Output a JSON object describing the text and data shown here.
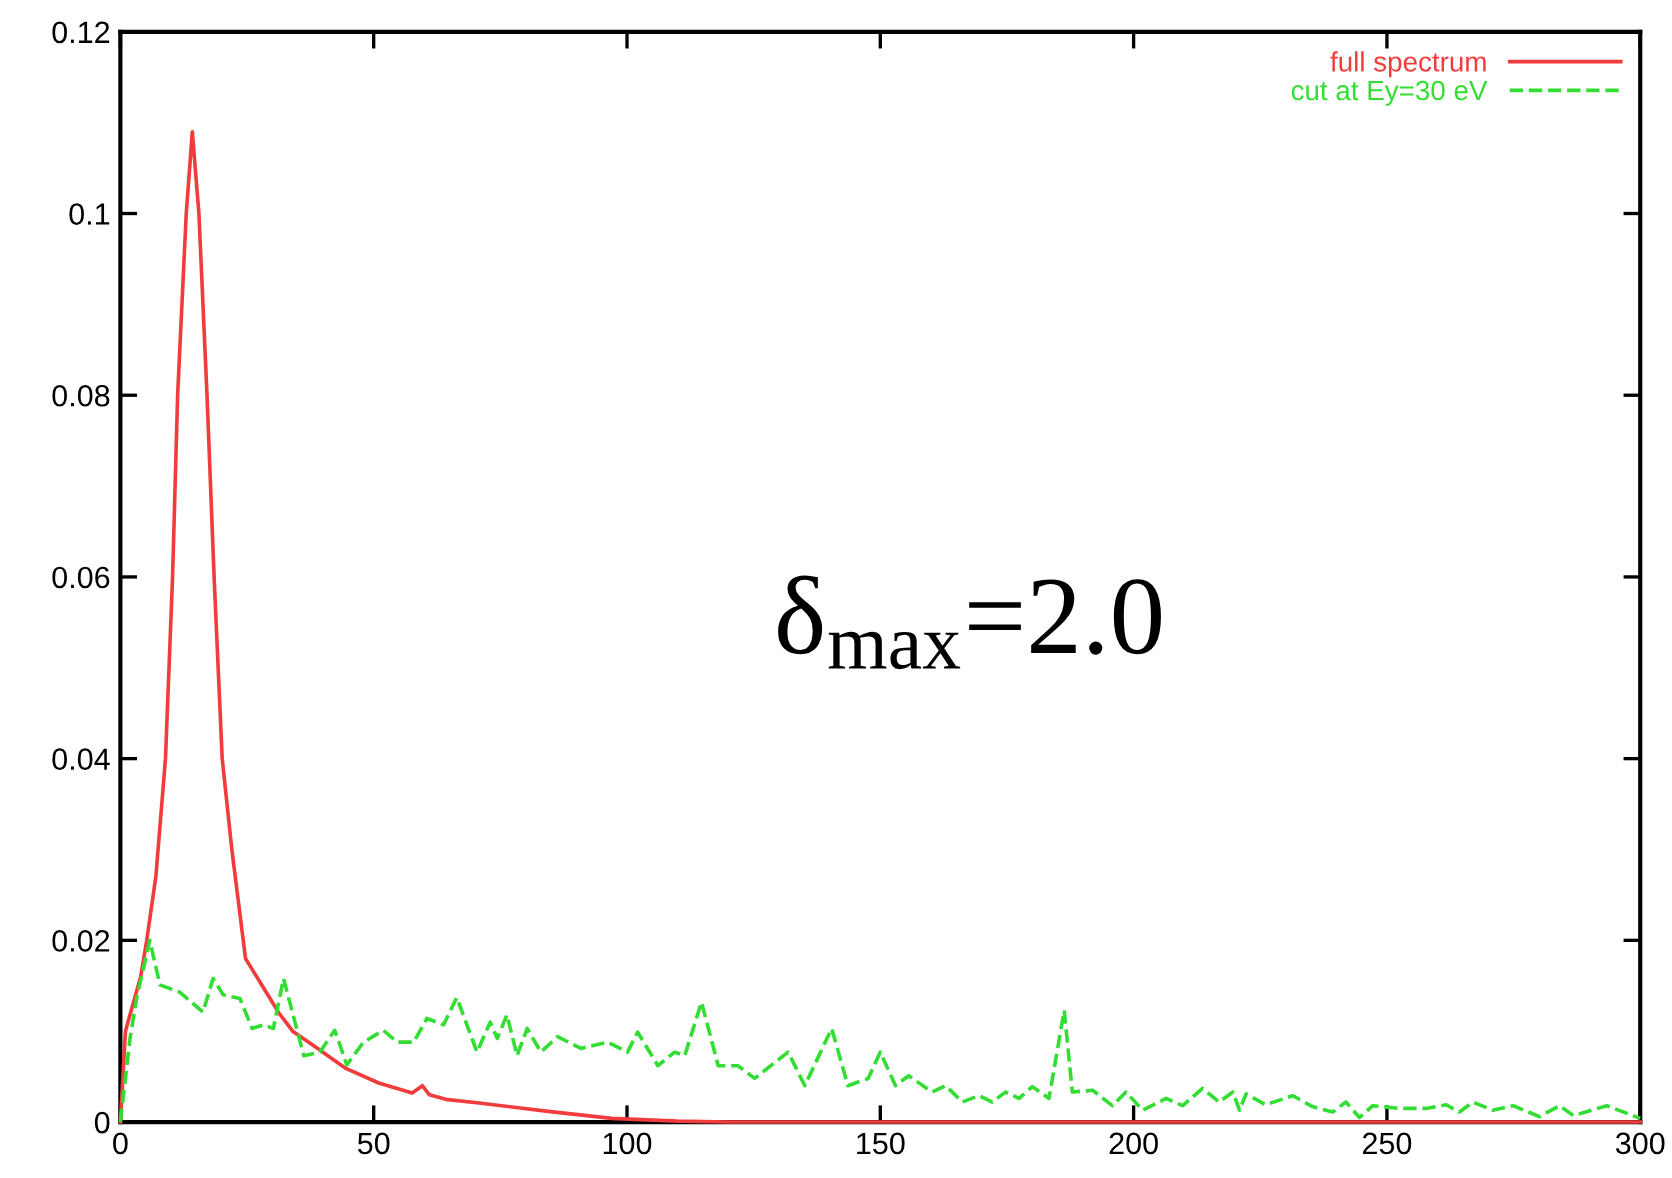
{
  "chart_data": {
    "type": "line",
    "xlim": [
      0,
      300
    ],
    "xticks": [
      0,
      50,
      100,
      150,
      200,
      250,
      300
    ],
    "ylim": [
      0,
      0.12
    ],
    "yticks": [
      0,
      0.02,
      0.04,
      0.06,
      0.08,
      0.1,
      0.12
    ],
    "grid": false,
    "legend": "top right",
    "marker": "none",
    "annotations": [
      "δ$_{max}$=2.0"
    ],
    "series": [
      {
        "name": "full spectrum",
        "color": "#f03c3c",
        "line_style": "solid",
        "x": [
          0,
          1,
          2,
          4,
          5.2,
          7,
          8.9,
          10.3,
          11.3,
          13,
          14.2,
          15.5,
          17.1,
          18.5,
          20.1,
          22,
          24.7,
          28,
          31.3,
          34,
          37.9,
          44.5,
          51,
          57.6,
          59.6,
          61,
          64.2,
          70.8,
          84,
          97,
          110,
          120,
          300
        ],
        "values": [
          0,
          0.01,
          0.012,
          0.016,
          0.02,
          0.027,
          0.04,
          0.06,
          0.08,
          0.1,
          0.109,
          0.1,
          0.08,
          0.06,
          0.04,
          0.03,
          0.018,
          0.015,
          0.012,
          0.01,
          0.0085,
          0.0059,
          0.0043,
          0.0032,
          0.004,
          0.003,
          0.0025,
          0.0021,
          0.0012,
          0.0004,
          0.0001,
          0,
          0
        ]
      },
      {
        "name": "cut at Ey=30 eV",
        "color": "#33dd33",
        "line_style": "dashed",
        "x": [
          0,
          1.9,
          3.2,
          5.8,
          7.8,
          11.7,
          16.3,
          18.3,
          20.3,
          23.6,
          26,
          28.2,
          30.2,
          32.2,
          36.2,
          39.4,
          42.3,
          44.7,
          48,
          51.9,
          54.6,
          57.9,
          60.5,
          63.8,
          66.4,
          70.4,
          73,
          74.4,
          76.3,
          78.3,
          80.3,
          83,
          86.3,
          90.9,
          96.2,
          100.1,
          102.1,
          106.1,
          109.4,
          111.4,
          114.7,
          118,
          121.9,
          125.2,
          131.8,
          135.1,
          140.4,
          143.6,
          147.6,
          150,
          153,
          155.6,
          160.2,
          162.9,
          166.2,
          169.5,
          172.1,
          174.7,
          177.4,
          180,
          183.3,
          186.3,
          187.9,
          191.9,
          195.8,
          198.5,
          201.8,
          206.4,
          209.7,
          213.6,
          216.9,
          219.6,
          220.9,
          222.2,
          226.1,
          231.4,
          235.3,
          239.3,
          241.9,
          244.6,
          247.2,
          252.5,
          257.7,
          261.7,
          264.3,
          267,
          270.9,
          274.9,
          280.1,
          284.1,
          286.8,
          293.4,
          300
        ],
        "values": [
          0,
          0.0092,
          0.0136,
          0.02,
          0.0151,
          0.0143,
          0.0121,
          0.0158,
          0.014,
          0.0136,
          0.0103,
          0.0107,
          0.0103,
          0.0158,
          0.0073,
          0.0077,
          0.0101,
          0.0063,
          0.0088,
          0.0101,
          0.0088,
          0.0088,
          0.0114,
          0.0107,
          0.0137,
          0.0077,
          0.011,
          0.0092,
          0.0118,
          0.0073,
          0.0103,
          0.0077,
          0.0094,
          0.0081,
          0.0088,
          0.0077,
          0.0099,
          0.0062,
          0.0077,
          0.0073,
          0.0132,
          0.0062,
          0.0062,
          0.0048,
          0.0077,
          0.004,
          0.0103,
          0.004,
          0.0048,
          0.0077,
          0.004,
          0.0051,
          0.0033,
          0.004,
          0.0022,
          0.0029,
          0.0022,
          0.0033,
          0.0026,
          0.0039,
          0.0026,
          0.0123,
          0.0033,
          0.0035,
          0.0018,
          0.0033,
          0.0013,
          0.0026,
          0.0018,
          0.0037,
          0.0022,
          0.0033,
          0.0013,
          0.0031,
          0.0019,
          0.0029,
          0.0017,
          0.0011,
          0.0022,
          0.0005,
          0.0018,
          0.0015,
          0.0015,
          0.0019,
          0.0011,
          0.0022,
          0.0013,
          0.0018,
          0.0006,
          0.0018,
          0.0007,
          0.0018,
          0.0004
        ]
      }
    ]
  }
}
